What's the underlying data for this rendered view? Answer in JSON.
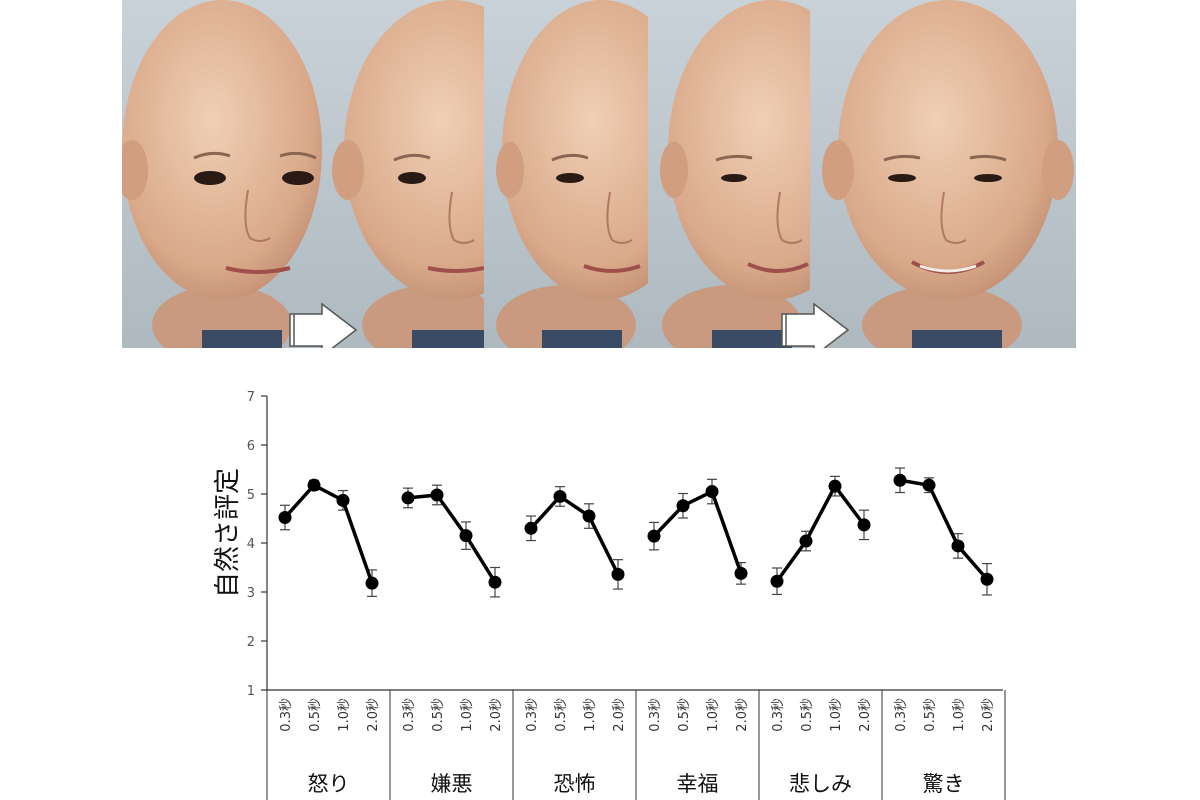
{
  "chart_data": {
    "type": "line",
    "ylabel": "自然さ評定",
    "ylim": [
      1,
      7
    ],
    "yticks": [
      1,
      2,
      3,
      4,
      5,
      6,
      7
    ],
    "categories": [
      "0.3秒",
      "0.5秒",
      "1.0秒",
      "2.0秒"
    ],
    "groups": [
      "怒り",
      "嫌悪",
      "恐怖",
      "幸福",
      "悲しみ",
      "驚き"
    ],
    "series": [
      {
        "group": "怒り",
        "values": [
          4.52,
          5.18,
          4.87,
          3.18
        ],
        "errors": [
          0.25,
          0.1,
          0.2,
          0.27
        ]
      },
      {
        "group": "嫌悪",
        "values": [
          4.92,
          4.98,
          4.15,
          3.2
        ],
        "errors": [
          0.2,
          0.2,
          0.28,
          0.3
        ]
      },
      {
        "group": "恐怖",
        "values": [
          4.3,
          4.95,
          4.55,
          3.36
        ],
        "errors": [
          0.25,
          0.2,
          0.25,
          0.3
        ]
      },
      {
        "group": "幸福",
        "values": [
          4.14,
          4.76,
          5.05,
          3.38
        ],
        "errors": [
          0.28,
          0.25,
          0.25,
          0.22
        ]
      },
      {
        "group": "悲しみ",
        "values": [
          3.22,
          4.04,
          5.16,
          4.37
        ],
        "errors": [
          0.27,
          0.2,
          0.2,
          0.3
        ]
      },
      {
        "group": "驚き",
        "values": [
          5.28,
          5.18,
          3.94,
          3.26
        ],
        "errors": [
          0.25,
          0.15,
          0.25,
          0.32
        ]
      }
    ],
    "grid": false,
    "legend": "none"
  },
  "figure": {
    "photo_panel_count": 5,
    "arrow_count": 2
  }
}
